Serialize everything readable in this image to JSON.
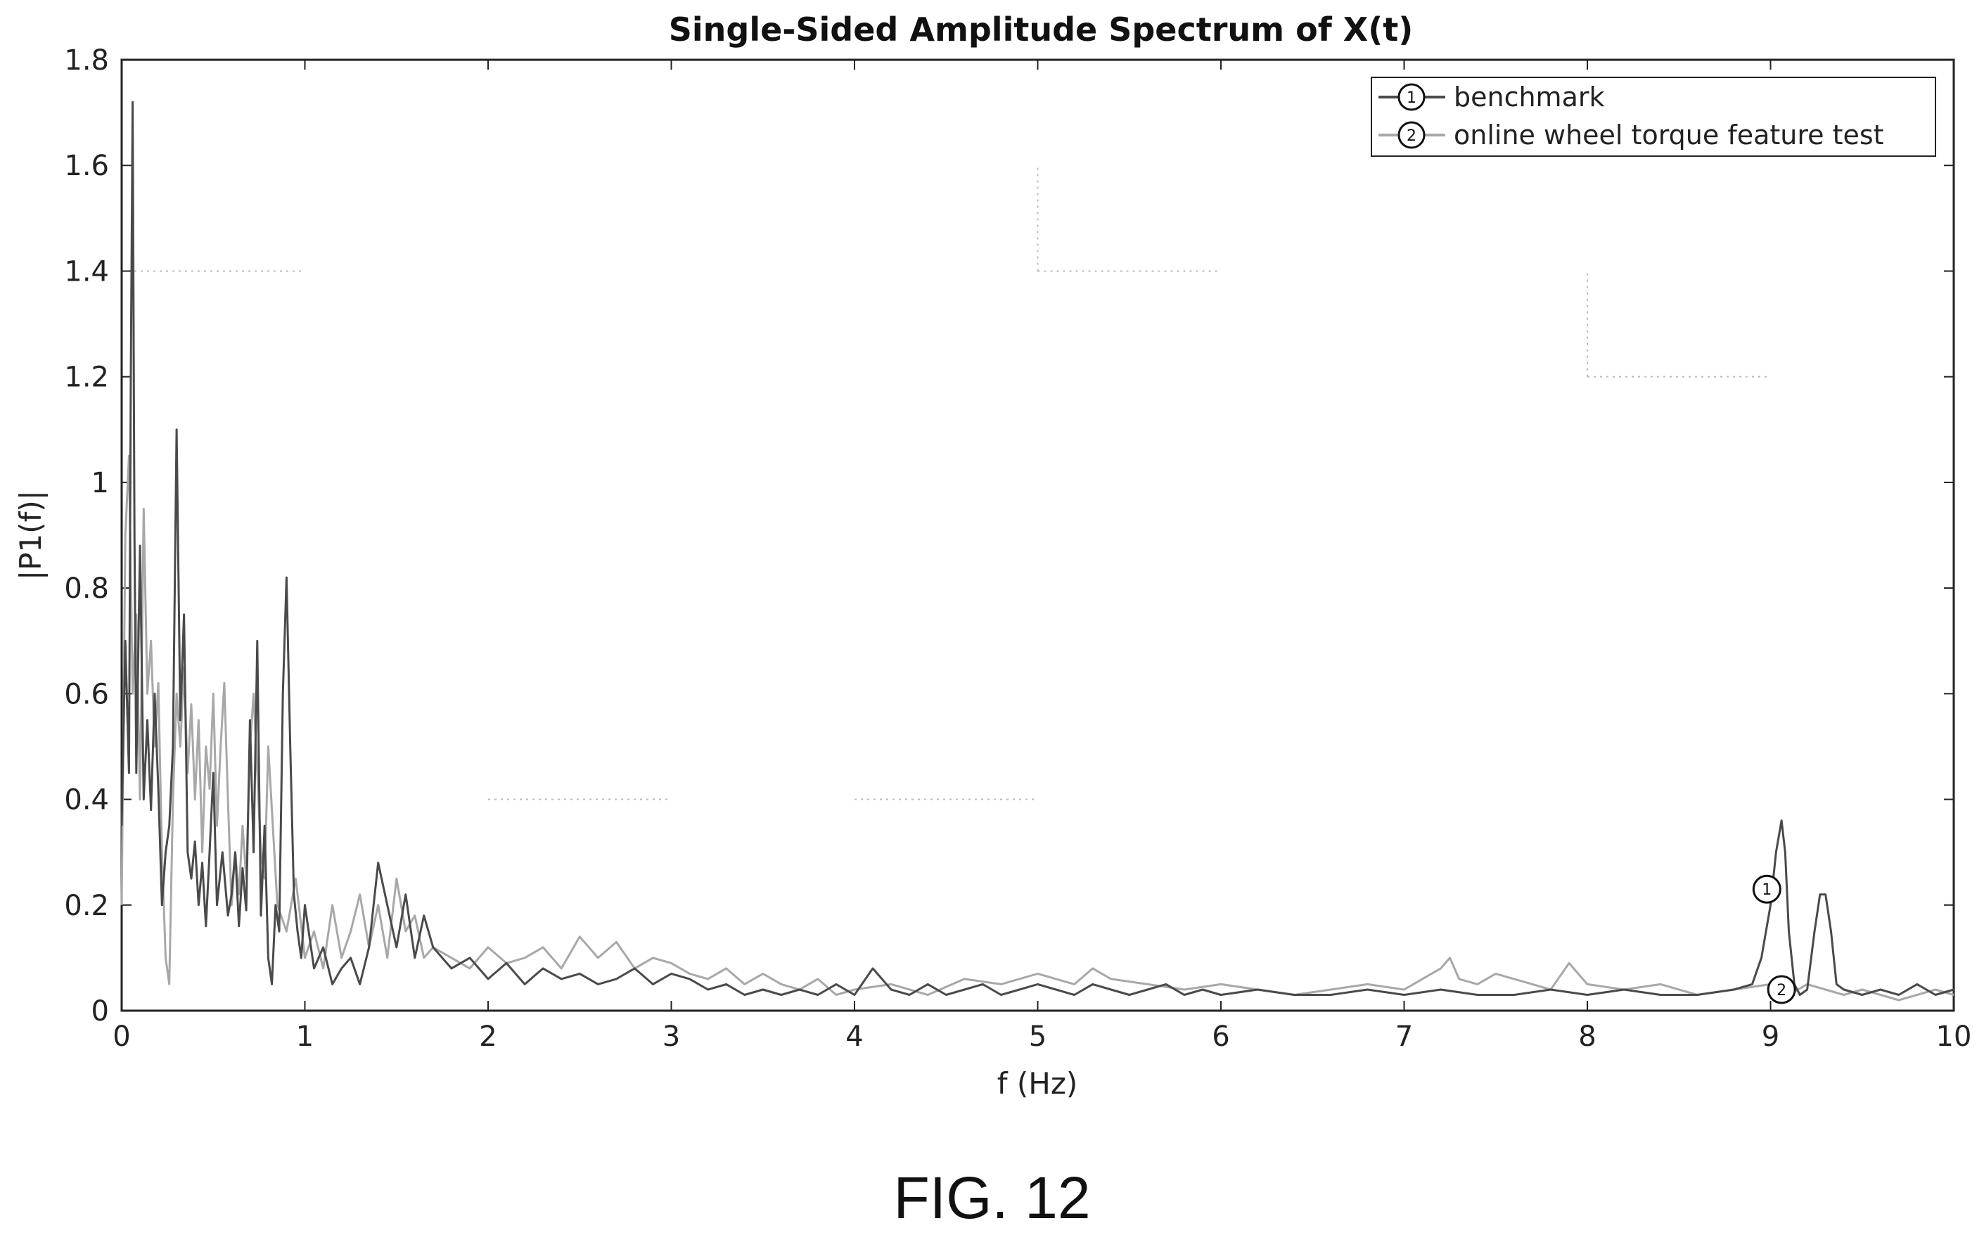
{
  "figure_label": "FIG. 12",
  "chart_data": {
    "type": "line",
    "title": "Single-Sided Amplitude Spectrum of X(t)",
    "xlabel": "f (Hz)",
    "ylabel": "|P1(f)|",
    "xlim": [
      0,
      10
    ],
    "ylim": [
      0,
      1.8
    ],
    "xticks": [
      "0",
      "1",
      "2",
      "3",
      "4",
      "5",
      "6",
      "7",
      "8",
      "9",
      "10"
    ],
    "yticks": [
      "0",
      "0.2",
      "0.4",
      "0.6",
      "0.8",
      "1",
      "1.2",
      "1.4",
      "1.6",
      "1.8"
    ],
    "grid": true,
    "legend_position": "top-right",
    "colors": {
      "benchmark": "#4a4a4a",
      "online": "#a8a8a8",
      "axes": "#222222"
    },
    "series": [
      {
        "name": "benchmark",
        "marker": "1",
        "marker_point": [
          8.98,
          0.23
        ],
        "x": [
          0,
          0.02,
          0.04,
          0.05,
          0.06,
          0.07,
          0.08,
          0.1,
          0.12,
          0.14,
          0.16,
          0.18,
          0.2,
          0.22,
          0.24,
          0.26,
          0.28,
          0.3,
          0.32,
          0.34,
          0.36,
          0.38,
          0.4,
          0.42,
          0.44,
          0.46,
          0.48,
          0.5,
          0.52,
          0.55,
          0.58,
          0.6,
          0.62,
          0.64,
          0.66,
          0.68,
          0.7,
          0.72,
          0.74,
          0.76,
          0.78,
          0.8,
          0.82,
          0.84,
          0.86,
          0.88,
          0.9,
          0.92,
          0.94,
          0.96,
          0.98,
          1.0,
          1.05,
          1.1,
          1.15,
          1.2,
          1.25,
          1.3,
          1.35,
          1.4,
          1.45,
          1.5,
          1.55,
          1.6,
          1.65,
          1.7,
          1.8,
          1.9,
          2.0,
          2.1,
          2.2,
          2.3,
          2.4,
          2.5,
          2.6,
          2.7,
          2.8,
          2.9,
          3.0,
          3.1,
          3.2,
          3.3,
          3.4,
          3.5,
          3.6,
          3.7,
          3.8,
          3.9,
          4.0,
          4.1,
          4.2,
          4.3,
          4.4,
          4.5,
          4.6,
          4.7,
          4.8,
          4.9,
          5.0,
          5.1,
          5.2,
          5.3,
          5.4,
          5.5,
          5.6,
          5.7,
          5.8,
          5.9,
          6.0,
          6.2,
          6.4,
          6.6,
          6.8,
          7.0,
          7.2,
          7.4,
          7.6,
          7.8,
          8.0,
          8.2,
          8.4,
          8.6,
          8.8,
          8.9,
          8.95,
          9.0,
          9.03,
          9.06,
          9.08,
          9.1,
          9.13,
          9.16,
          9.2,
          9.24,
          9.27,
          9.3,
          9.33,
          9.36,
          9.4,
          9.5,
          9.6,
          9.7,
          9.8,
          9.9,
          10.0
        ],
        "y": [
          0.35,
          0.7,
          0.45,
          1.2,
          1.72,
          0.9,
          0.45,
          0.88,
          0.4,
          0.55,
          0.38,
          0.6,
          0.42,
          0.2,
          0.3,
          0.35,
          0.5,
          1.1,
          0.55,
          0.75,
          0.3,
          0.25,
          0.32,
          0.2,
          0.28,
          0.16,
          0.3,
          0.45,
          0.2,
          0.3,
          0.18,
          0.22,
          0.3,
          0.16,
          0.27,
          0.19,
          0.55,
          0.3,
          0.7,
          0.18,
          0.35,
          0.1,
          0.05,
          0.2,
          0.15,
          0.6,
          0.82,
          0.5,
          0.22,
          0.15,
          0.1,
          0.2,
          0.08,
          0.12,
          0.05,
          0.08,
          0.1,
          0.05,
          0.12,
          0.28,
          0.2,
          0.12,
          0.22,
          0.1,
          0.18,
          0.12,
          0.08,
          0.1,
          0.06,
          0.09,
          0.05,
          0.08,
          0.06,
          0.07,
          0.05,
          0.06,
          0.08,
          0.05,
          0.07,
          0.06,
          0.04,
          0.05,
          0.03,
          0.04,
          0.03,
          0.04,
          0.03,
          0.05,
          0.03,
          0.08,
          0.04,
          0.03,
          0.05,
          0.03,
          0.04,
          0.05,
          0.03,
          0.04,
          0.05,
          0.04,
          0.03,
          0.05,
          0.04,
          0.03,
          0.04,
          0.05,
          0.03,
          0.04,
          0.03,
          0.04,
          0.03,
          0.03,
          0.04,
          0.03,
          0.04,
          0.03,
          0.03,
          0.04,
          0.03,
          0.04,
          0.03,
          0.03,
          0.04,
          0.05,
          0.1,
          0.2,
          0.3,
          0.36,
          0.3,
          0.15,
          0.05,
          0.03,
          0.04,
          0.15,
          0.22,
          0.22,
          0.15,
          0.05,
          0.04,
          0.03,
          0.04,
          0.03,
          0.05,
          0.03,
          0.04
        ]
      },
      {
        "name": "online wheel torque feature test",
        "marker": "2",
        "marker_point": [
          9.06,
          0.04
        ],
        "x": [
          0,
          0.02,
          0.04,
          0.06,
          0.08,
          0.1,
          0.12,
          0.14,
          0.16,
          0.18,
          0.2,
          0.22,
          0.24,
          0.26,
          0.28,
          0.3,
          0.32,
          0.34,
          0.36,
          0.38,
          0.4,
          0.42,
          0.44,
          0.46,
          0.48,
          0.5,
          0.52,
          0.54,
          0.56,
          0.58,
          0.6,
          0.62,
          0.64,
          0.66,
          0.68,
          0.7,
          0.72,
          0.74,
          0.76,
          0.78,
          0.8,
          0.85,
          0.9,
          0.95,
          1.0,
          1.05,
          1.1,
          1.15,
          1.2,
          1.25,
          1.3,
          1.35,
          1.4,
          1.45,
          1.5,
          1.55,
          1.6,
          1.65,
          1.7,
          1.8,
          1.9,
          2.0,
          2.1,
          2.2,
          2.3,
          2.4,
          2.5,
          2.6,
          2.7,
          2.8,
          2.9,
          3.0,
          3.1,
          3.2,
          3.3,
          3.4,
          3.5,
          3.6,
          3.7,
          3.8,
          3.9,
          4.0,
          4.2,
          4.4,
          4.6,
          4.8,
          5.0,
          5.2,
          5.3,
          5.4,
          5.6,
          5.8,
          6.0,
          6.2,
          6.4,
          6.6,
          6.8,
          7.0,
          7.1,
          7.2,
          7.25,
          7.3,
          7.4,
          7.5,
          7.6,
          7.7,
          7.8,
          7.9,
          8.0,
          8.2,
          8.4,
          8.6,
          8.8,
          9.0,
          9.05,
          9.1,
          9.2,
          9.3,
          9.4,
          9.5,
          9.6,
          9.7,
          9.8,
          9.9,
          10.0
        ],
        "y": [
          0.2,
          0.9,
          1.05,
          0.6,
          0.75,
          0.4,
          0.95,
          0.6,
          0.7,
          0.5,
          0.62,
          0.3,
          0.1,
          0.05,
          0.4,
          0.6,
          0.5,
          0.65,
          0.45,
          0.58,
          0.4,
          0.55,
          0.3,
          0.5,
          0.42,
          0.6,
          0.35,
          0.5,
          0.62,
          0.4,
          0.2,
          0.3,
          0.22,
          0.35,
          0.25,
          0.5,
          0.6,
          0.45,
          0.3,
          0.25,
          0.5,
          0.2,
          0.15,
          0.25,
          0.1,
          0.15,
          0.08,
          0.2,
          0.1,
          0.15,
          0.22,
          0.12,
          0.2,
          0.1,
          0.25,
          0.15,
          0.18,
          0.1,
          0.12,
          0.1,
          0.08,
          0.12,
          0.09,
          0.1,
          0.12,
          0.08,
          0.14,
          0.1,
          0.13,
          0.08,
          0.1,
          0.09,
          0.07,
          0.06,
          0.08,
          0.05,
          0.07,
          0.05,
          0.04,
          0.06,
          0.03,
          0.04,
          0.05,
          0.03,
          0.06,
          0.05,
          0.07,
          0.05,
          0.08,
          0.06,
          0.05,
          0.04,
          0.05,
          0.04,
          0.03,
          0.04,
          0.05,
          0.04,
          0.06,
          0.08,
          0.1,
          0.06,
          0.05,
          0.07,
          0.06,
          0.05,
          0.04,
          0.09,
          0.05,
          0.04,
          0.05,
          0.03,
          0.04,
          0.05,
          0.04,
          0.03,
          0.05,
          0.04,
          0.03,
          0.04,
          0.03,
          0.02,
          0.03,
          0.04,
          0.03
        ]
      }
    ],
    "grid_dotted_segments": [
      {
        "x": [
          1.0,
          1.0
        ],
        "y": [
          1.4,
          1.4
        ]
      },
      {
        "x": [
          0.0,
          1.0
        ],
        "y": [
          1.4,
          1.4
        ]
      },
      {
        "x": [
          5.0,
          5.0
        ],
        "y": [
          1.4,
          1.6
        ]
      },
      {
        "x": [
          5.0,
          6.0
        ],
        "y": [
          1.4,
          1.4
        ]
      },
      {
        "x": [
          8.0,
          8.0
        ],
        "y": [
          1.2,
          1.4
        ]
      },
      {
        "x": [
          8.0,
          9.0
        ],
        "y": [
          1.2,
          1.2
        ]
      },
      {
        "x": [
          2.0,
          3.0
        ],
        "y": [
          0.4,
          0.4
        ]
      },
      {
        "x": [
          4.0,
          5.0
        ],
        "y": [
          0.4,
          0.4
        ]
      }
    ]
  }
}
